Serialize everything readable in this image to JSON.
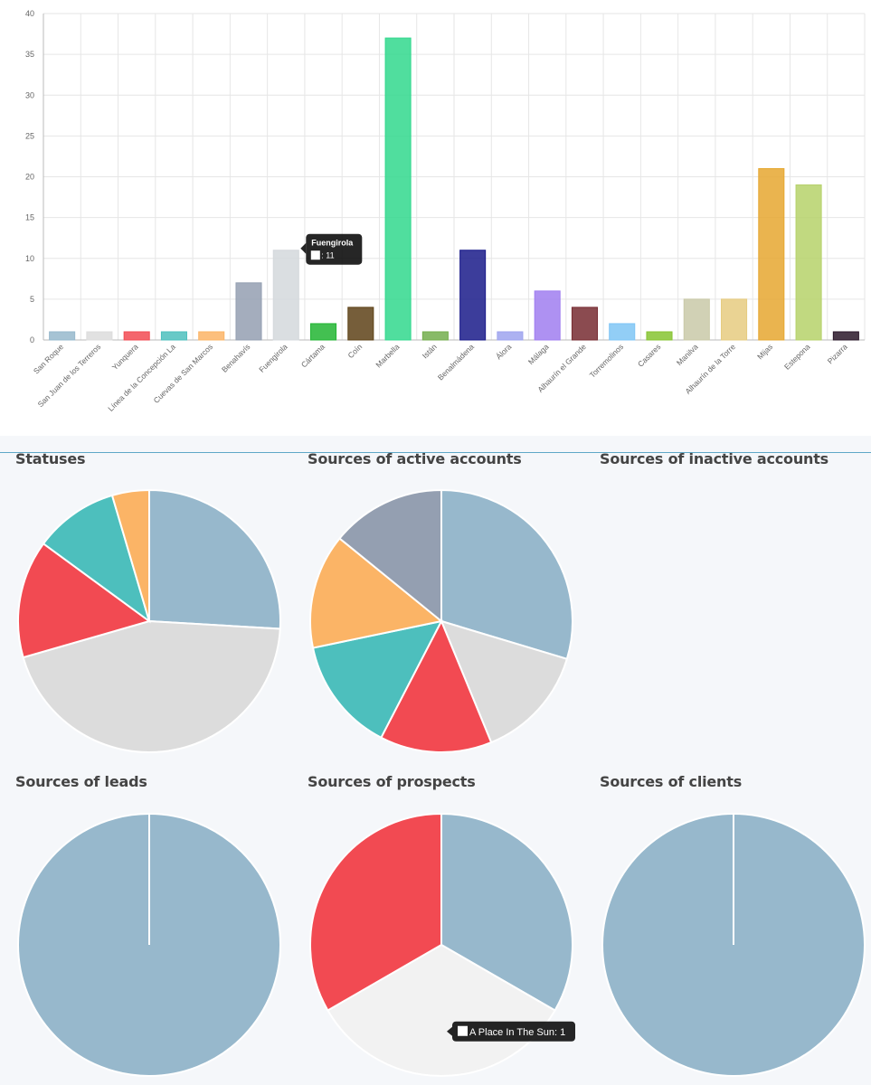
{
  "colors": {
    "background": "#f5f7fa",
    "panel": "#ffffff",
    "grid": "#e6e6e6",
    "divider": "#5fa8c7"
  },
  "chart_data": [
    {
      "type": "bar",
      "title": "",
      "xlabel": "",
      "ylabel": "",
      "ylim": [
        0,
        40
      ],
      "yticks": [
        0,
        5,
        10,
        15,
        20,
        25,
        30,
        35,
        40
      ],
      "grid": true,
      "categories": [
        "San Roque",
        "San Juan de los Terreros",
        "Yunquera",
        "Línea de la Concepción La",
        "Cuevas de San Marcos",
        "Benahavís",
        "Fuengirola",
        "Cártama",
        "Coín",
        "Marbella",
        "Istán",
        "Benalmádena",
        "Álora",
        "Málaga",
        "Alhaurín el Grande",
        "Torremolinos",
        "Casares",
        "Manilva",
        "Alhaurín de la Torre",
        "Mijas",
        "Estepona",
        "Pizarra"
      ],
      "values": [
        1,
        1,
        1,
        1,
        1,
        7,
        11,
        2,
        4,
        37,
        1,
        11,
        1,
        6,
        4,
        2,
        1,
        5,
        5,
        21,
        19,
        1
      ],
      "colors": [
        "#97b8cc",
        "#dcdcdc",
        "#f24a52",
        "#4dbfbd",
        "#fbb466",
        "#949fb1",
        "#d4d8dc",
        "#22b533",
        "#5e4217",
        "#31d88d",
        "#73ae4c",
        "#1a1b8a",
        "#9ea3ee",
        "#a07ef0",
        "#772b31",
        "#7fc5f5",
        "#86c431",
        "#c9c9a8",
        "#e6cb80",
        "#e6a730",
        "#b6d26a",
        "#2a1729"
      ],
      "tooltip": {
        "title": "Fuengirola",
        "text": ": 11"
      }
    },
    {
      "type": "pie",
      "title": "Statuses",
      "values": [
        25,
        43,
        14,
        10,
        4.4
      ],
      "colors": [
        "#97b8cc",
        "#dcdcdc",
        "#f24a52",
        "#4dbfbd",
        "#fbb466"
      ]
    },
    {
      "type": "pie",
      "title": "Sources of active accounts",
      "values": [
        27.7,
        13.2,
        12.9,
        13.2,
        13.2,
        13.2
      ],
      "colors": [
        "#97b8cc",
        "#dcdcdc",
        "#f24a52",
        "#4dbfbd",
        "#fbb466",
        "#949fb1"
      ]
    },
    {
      "type": "pie",
      "title": "Sources of inactive accounts",
      "values": [],
      "colors": []
    },
    {
      "type": "pie",
      "title": "Sources of leads",
      "values": [
        1
      ],
      "colors": [
        "#97b8cc"
      ]
    },
    {
      "type": "pie",
      "title": "Sources of prospects",
      "values": [
        1,
        1,
        1
      ],
      "colors": [
        "#97b8cc",
        "#f2f2f2",
        "#f24a52"
      ],
      "tooltip": {
        "text": "A Place In The Sun: 1"
      }
    },
    {
      "type": "pie",
      "title": "Sources of clients",
      "values": [
        1
      ],
      "colors": [
        "#97b8cc"
      ]
    }
  ]
}
